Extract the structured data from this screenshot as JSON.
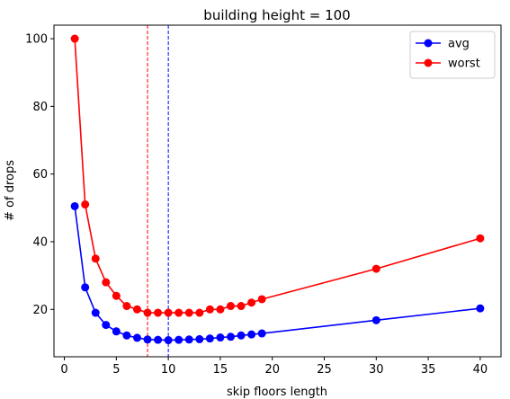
{
  "chart_data": {
    "type": "line",
    "title": "building height = 100",
    "xlabel": "skip floors length",
    "ylabel": "# of drops",
    "xlim": [
      -1,
      42
    ],
    "ylim": [
      6,
      104
    ],
    "xticks": [
      0,
      5,
      10,
      15,
      20,
      25,
      30,
      35,
      40
    ],
    "yticks": [
      20,
      40,
      60,
      80,
      100
    ],
    "grid": false,
    "legend_position": "top-right",
    "x": [
      1,
      2,
      3,
      4,
      5,
      6,
      7,
      8,
      9,
      10,
      11,
      12,
      13,
      14,
      15,
      16,
      17,
      18,
      19,
      30,
      40
    ],
    "series": [
      {
        "name": "avg",
        "color": "#0000ff",
        "marker": "circle",
        "values": [
          50.5,
          26.5,
          19.0,
          15.4,
          13.5,
          12.3,
          11.6,
          11.1,
          11.0,
          10.9,
          11.0,
          11.1,
          11.2,
          11.4,
          11.7,
          11.9,
          12.3,
          12.6,
          12.9,
          16.8,
          20.3
        ]
      },
      {
        "name": "worst",
        "color": "#ff0000",
        "marker": "circle",
        "values": [
          100,
          51,
          35,
          28,
          24,
          21,
          20,
          19,
          19,
          19,
          19,
          19,
          19,
          20,
          20,
          21,
          21,
          22,
          23,
          32,
          41
        ]
      }
    ],
    "vlines": [
      {
        "x": 8,
        "color": "#ff0000",
        "style": "dashed"
      },
      {
        "x": 10,
        "color": "#0000ff",
        "style": "dashed"
      }
    ]
  }
}
